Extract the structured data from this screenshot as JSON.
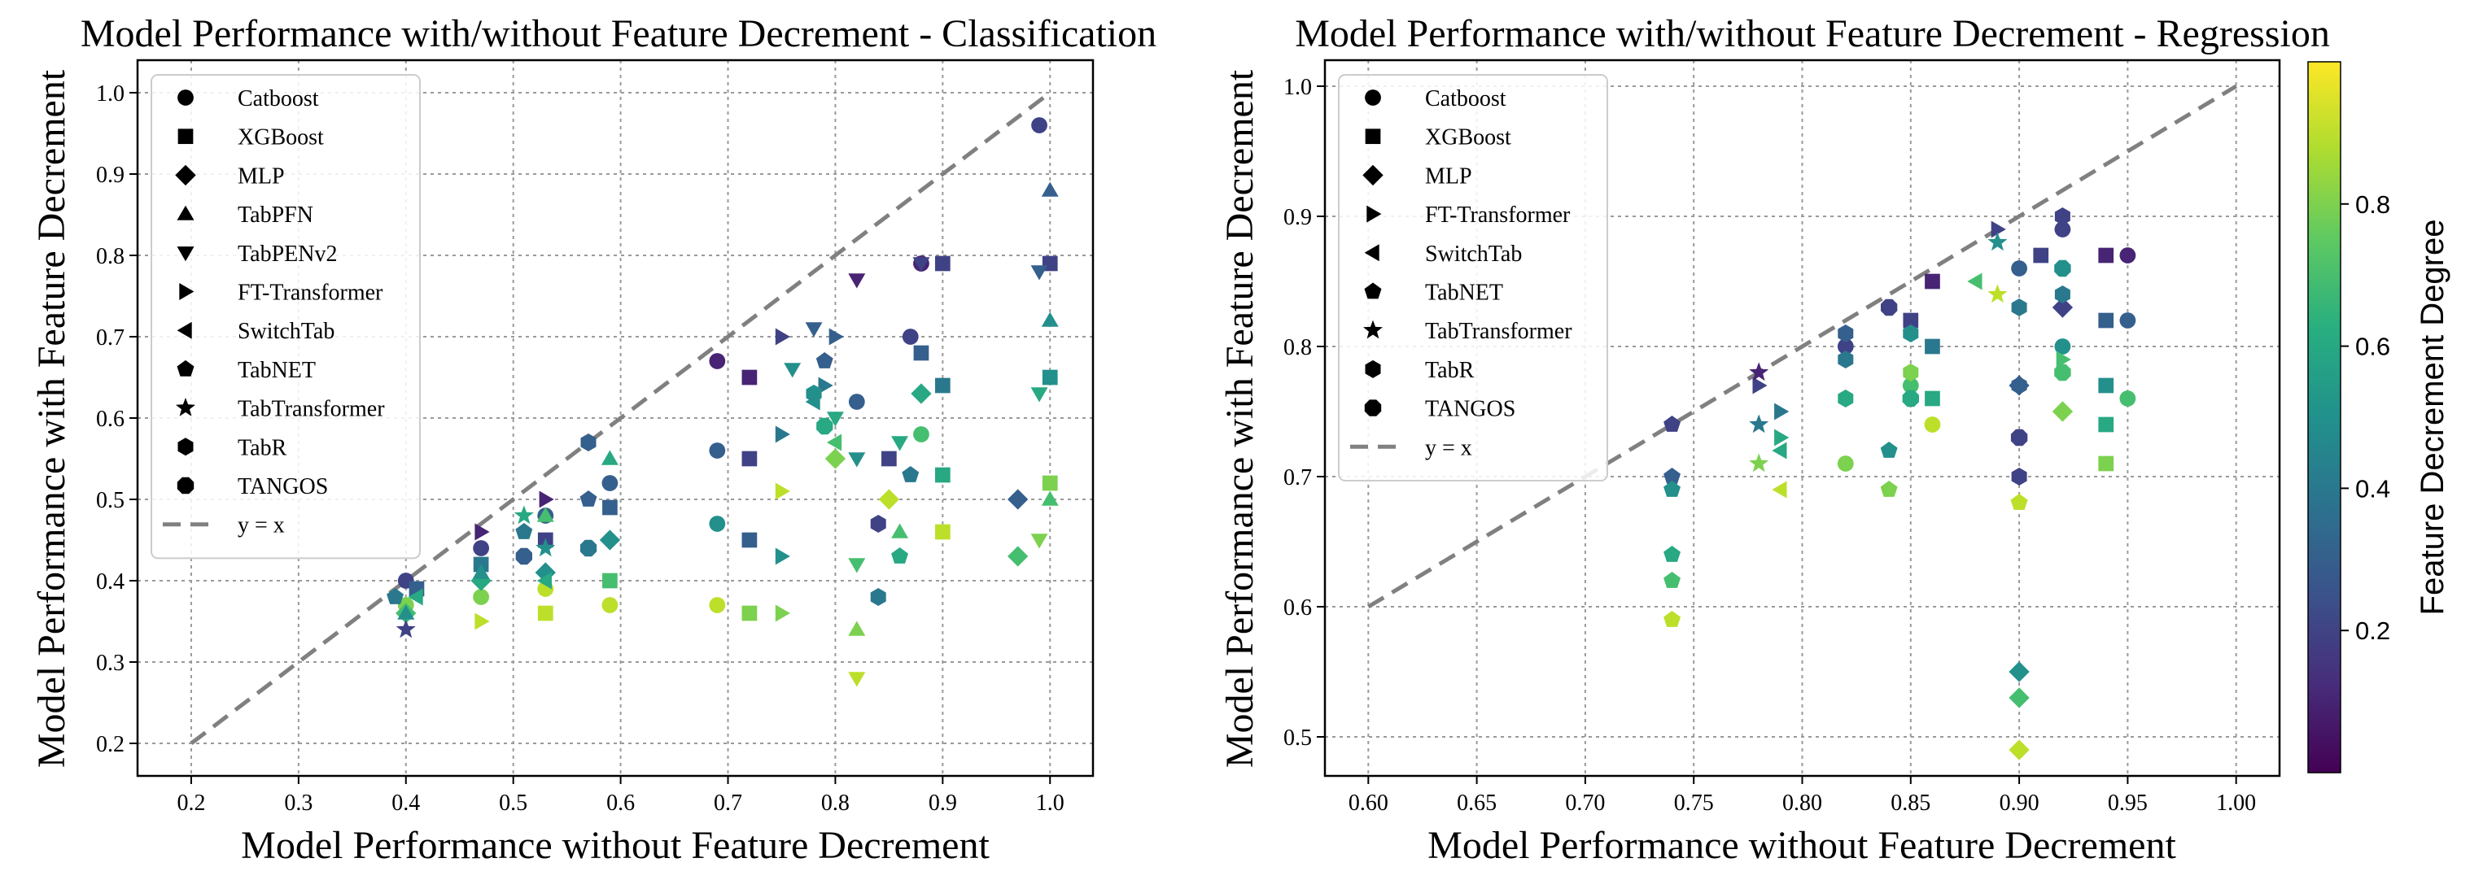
{
  "chart_data": [
    {
      "type": "scatter",
      "title": "Model Performance with/without Feature Decrement - Classification",
      "xlabel": "Model Performance without Feature Decrement",
      "ylabel": "Model Performance with Feature Decrement",
      "xlim": [
        0.15,
        1.04
      ],
      "ylim": [
        0.16,
        1.04
      ],
      "xticks": [
        "0.2",
        "0.3",
        "0.4",
        "0.5",
        "0.6",
        "0.7",
        "0.8",
        "0.9",
        "1.0"
      ],
      "yticks": [
        "0.2",
        "0.3",
        "0.4",
        "0.5",
        "0.6",
        "0.7",
        "0.8",
        "0.9",
        "1.0"
      ],
      "grid": true,
      "legend_position": "upper-left",
      "reference_line": {
        "label": "y = x",
        "from": [
          0.2,
          0.2
        ],
        "to": [
          1.0,
          1.0
        ]
      },
      "series": [
        {
          "name": "Catboost",
          "marker": "circle",
          "points": [
            [
              0.4,
              0.4,
              0.2
            ],
            [
              0.4,
              0.37,
              0.8
            ],
            [
              0.47,
              0.44,
              0.2
            ],
            [
              0.47,
              0.38,
              0.8
            ],
            [
              0.53,
              0.48,
              0.3
            ],
            [
              0.53,
              0.39,
              0.9
            ],
            [
              0.59,
              0.52,
              0.3
            ],
            [
              0.59,
              0.37,
              0.9
            ],
            [
              0.69,
              0.67,
              0.1
            ],
            [
              0.69,
              0.56,
              0.3
            ],
            [
              0.69,
              0.47,
              0.5
            ],
            [
              0.69,
              0.37,
              0.9
            ],
            [
              0.82,
              0.62,
              0.3
            ],
            [
              0.87,
              0.7,
              0.2
            ],
            [
              0.88,
              0.79,
              0.1
            ],
            [
              0.99,
              0.96,
              0.2
            ],
            [
              0.88,
              0.58,
              0.7
            ]
          ]
        },
        {
          "name": "XGBoost",
          "marker": "square",
          "points": [
            [
              0.41,
              0.39,
              0.3
            ],
            [
              0.47,
              0.42,
              0.4
            ],
            [
              0.53,
              0.45,
              0.2
            ],
            [
              0.53,
              0.36,
              0.9
            ],
            [
              0.59,
              0.49,
              0.3
            ],
            [
              0.59,
              0.4,
              0.7
            ],
            [
              0.72,
              0.65,
              0.1
            ],
            [
              0.72,
              0.55,
              0.2
            ],
            [
              0.72,
              0.45,
              0.3
            ],
            [
              0.72,
              0.36,
              0.8
            ],
            [
              0.85,
              0.55,
              0.2
            ],
            [
              0.88,
              0.68,
              0.3
            ],
            [
              0.9,
              0.79,
              0.2
            ],
            [
              0.9,
              0.64,
              0.4
            ],
            [
              0.9,
              0.53,
              0.6
            ],
            [
              0.9,
              0.46,
              0.9
            ],
            [
              1.0,
              0.79,
              0.2
            ],
            [
              1.0,
              0.65,
              0.5
            ],
            [
              1.0,
              0.52,
              0.8
            ]
          ]
        },
        {
          "name": "MLP",
          "marker": "diamond",
          "points": [
            [
              0.4,
              0.36,
              0.7
            ],
            [
              0.47,
              0.4,
              0.6
            ],
            [
              0.53,
              0.41,
              0.5
            ],
            [
              0.59,
              0.45,
              0.5
            ],
            [
              0.8,
              0.55,
              0.8
            ],
            [
              0.85,
              0.5,
              0.9
            ],
            [
              0.88,
              0.63,
              0.6
            ],
            [
              0.97,
              0.43,
              0.7
            ],
            [
              0.97,
              0.5,
              0.3
            ]
          ]
        },
        {
          "name": "TabPFN",
          "marker": "triangle-up",
          "points": [
            [
              0.4,
              0.36,
              0.5
            ],
            [
              0.47,
              0.41,
              0.5
            ],
            [
              0.53,
              0.48,
              0.7
            ],
            [
              0.59,
              0.55,
              0.6
            ],
            [
              0.82,
              0.34,
              0.8
            ],
            [
              0.86,
              0.46,
              0.7
            ],
            [
              1.0,
              0.88,
              0.3
            ],
            [
              1.0,
              0.72,
              0.5
            ],
            [
              1.0,
              0.5,
              0.7
            ]
          ]
        },
        {
          "name": "TabPENv2",
          "marker": "triangle-down",
          "points": [
            [
              0.76,
              0.66,
              0.5
            ],
            [
              0.78,
              0.71,
              0.3
            ],
            [
              0.8,
              0.6,
              0.6
            ],
            [
              0.82,
              0.77,
              0.1
            ],
            [
              0.82,
              0.55,
              0.5
            ],
            [
              0.82,
              0.42,
              0.7
            ],
            [
              0.82,
              0.28,
              0.9
            ],
            [
              0.86,
              0.57,
              0.6
            ],
            [
              0.88,
              0.79,
              0.2
            ],
            [
              0.99,
              0.78,
              0.3
            ],
            [
              0.99,
              0.63,
              0.6
            ],
            [
              0.99,
              0.45,
              0.8
            ]
          ]
        },
        {
          "name": "FT-Transformer",
          "marker": "triangle-right",
          "points": [
            [
              0.47,
              0.46,
              0.1
            ],
            [
              0.47,
              0.35,
              0.9
            ],
            [
              0.53,
              0.5,
              0.1
            ],
            [
              0.75,
              0.7,
              0.2
            ],
            [
              0.75,
              0.58,
              0.4
            ],
            [
              0.75,
              0.51,
              0.9
            ],
            [
              0.75,
              0.43,
              0.5
            ],
            [
              0.75,
              0.36,
              0.8
            ],
            [
              0.79,
              0.64,
              0.4
            ],
            [
              0.8,
              0.7,
              0.3
            ]
          ]
        },
        {
          "name": "SwitchTab",
          "marker": "triangle-left",
          "points": [
            [
              0.41,
              0.38,
              0.6
            ],
            [
              0.53,
              0.4,
              0.6
            ],
            [
              0.78,
              0.62,
              0.5
            ],
            [
              0.8,
              0.57,
              0.7
            ]
          ]
        },
        {
          "name": "TabNET",
          "marker": "pentagon",
          "points": [
            [
              0.39,
              0.38,
              0.4
            ],
            [
              0.51,
              0.46,
              0.4
            ],
            [
              0.57,
              0.5,
              0.3
            ],
            [
              0.79,
              0.67,
              0.3
            ],
            [
              0.86,
              0.43,
              0.6
            ],
            [
              0.87,
              0.53,
              0.4
            ]
          ]
        },
        {
          "name": "TabTransformer",
          "marker": "star",
          "points": [
            [
              0.4,
              0.34,
              0.2
            ],
            [
              0.51,
              0.48,
              0.6
            ],
            [
              0.53,
              0.44,
              0.5
            ]
          ]
        },
        {
          "name": "TabR",
          "marker": "hexagon",
          "points": [
            [
              0.57,
              0.57,
              0.3
            ],
            [
              0.78,
              0.63,
              0.5
            ],
            [
              0.84,
              0.38,
              0.4
            ],
            [
              0.84,
              0.47,
              0.2
            ]
          ]
        },
        {
          "name": "TANGOS",
          "marker": "octagon",
          "points": [
            [
              0.51,
              0.43,
              0.3
            ],
            [
              0.57,
              0.44,
              0.4
            ],
            [
              0.79,
              0.59,
              0.6
            ]
          ]
        }
      ]
    },
    {
      "type": "scatter",
      "title": "Model Performance with/without Feature Decrement - Regression",
      "xlabel": "Model Performance without Feature Decrement",
      "ylabel": "Model Performance with Feature Decrement",
      "xlim": [
        0.58,
        1.02
      ],
      "ylim": [
        0.47,
        1.02
      ],
      "xticks": [
        "0.60",
        "0.65",
        "0.70",
        "0.75",
        "0.80",
        "0.85",
        "0.90",
        "0.95",
        "1.00"
      ],
      "yticks": [
        "0.5",
        "0.6",
        "0.7",
        "0.8",
        "0.9",
        "1.0"
      ],
      "grid": true,
      "legend_position": "upper-left",
      "reference_line": {
        "label": "y = x",
        "from": [
          0.6,
          0.6
        ],
        "to": [
          1.0,
          1.0
        ]
      },
      "colorbar": {
        "label": "Feature Decrement Degree",
        "range": [
          0.0,
          1.0
        ],
        "ticks": [
          "0.2",
          "0.4",
          "0.6",
          "0.8"
        ],
        "colormap": "viridis"
      },
      "series": [
        {
          "name": "Catboost",
          "marker": "circle",
          "points": [
            [
              0.82,
              0.8,
              0.2
            ],
            [
              0.82,
              0.71,
              0.8
            ],
            [
              0.85,
              0.77,
              0.7
            ],
            [
              0.86,
              0.74,
              0.9
            ],
            [
              0.9,
              0.86,
              0.3
            ],
            [
              0.92,
              0.89,
              0.2
            ],
            [
              0.92,
              0.8,
              0.5
            ],
            [
              0.95,
              0.87,
              0.1
            ],
            [
              0.95,
              0.82,
              0.3
            ],
            [
              0.95,
              0.76,
              0.7
            ]
          ]
        },
        {
          "name": "XGBoost",
          "marker": "square",
          "points": [
            [
              0.85,
              0.82,
              0.2
            ],
            [
              0.86,
              0.85,
              0.1
            ],
            [
              0.86,
              0.8,
              0.4
            ],
            [
              0.86,
              0.76,
              0.6
            ],
            [
              0.91,
              0.87,
              0.2
            ],
            [
              0.94,
              0.87,
              0.1
            ],
            [
              0.94,
              0.82,
              0.3
            ],
            [
              0.94,
              0.77,
              0.5
            ],
            [
              0.94,
              0.74,
              0.6
            ],
            [
              0.94,
              0.71,
              0.8
            ]
          ]
        },
        {
          "name": "MLP",
          "marker": "diamond",
          "points": [
            [
              0.9,
              0.55,
              0.5
            ],
            [
              0.9,
              0.53,
              0.7
            ],
            [
              0.9,
              0.49,
              0.9
            ],
            [
              0.9,
              0.77,
              0.3
            ],
            [
              0.92,
              0.75,
              0.8
            ],
            [
              0.92,
              0.83,
              0.2
            ]
          ]
        },
        {
          "name": "FT-Transformer",
          "marker": "triangle-right",
          "points": [
            [
              0.78,
              0.77,
              0.2
            ],
            [
              0.79,
              0.75,
              0.4
            ],
            [
              0.79,
              0.73,
              0.6
            ],
            [
              0.89,
              0.89,
              0.2
            ],
            [
              0.92,
              0.79,
              0.7
            ]
          ]
        },
        {
          "name": "SwitchTab",
          "marker": "triangle-left",
          "points": [
            [
              0.79,
              0.72,
              0.6
            ],
            [
              0.79,
              0.69,
              0.9
            ],
            [
              0.88,
              0.85,
              0.7
            ]
          ]
        },
        {
          "name": "TabNET",
          "marker": "pentagon",
          "points": [
            [
              0.74,
              0.74,
              0.2
            ],
            [
              0.74,
              0.7,
              0.3
            ],
            [
              0.74,
              0.69,
              0.5
            ],
            [
              0.74,
              0.64,
              0.6
            ],
            [
              0.74,
              0.62,
              0.7
            ],
            [
              0.74,
              0.59,
              0.9
            ],
            [
              0.84,
              0.72,
              0.5
            ],
            [
              0.84,
              0.69,
              0.8
            ],
            [
              0.9,
              0.68,
              0.9
            ]
          ]
        },
        {
          "name": "TabTransformer",
          "marker": "star",
          "points": [
            [
              0.78,
              0.78,
              0.1
            ],
            [
              0.78,
              0.74,
              0.4
            ],
            [
              0.78,
              0.71,
              0.8
            ],
            [
              0.89,
              0.84,
              0.9
            ],
            [
              0.89,
              0.88,
              0.5
            ]
          ]
        },
        {
          "name": "TabR",
          "marker": "hexagon",
          "points": [
            [
              0.82,
              0.81,
              0.3
            ],
            [
              0.82,
              0.79,
              0.4
            ],
            [
              0.82,
              0.76,
              0.6
            ],
            [
              0.85,
              0.81,
              0.5
            ],
            [
              0.85,
              0.78,
              0.8
            ],
            [
              0.9,
              0.83,
              0.4
            ],
            [
              0.9,
              0.77,
              0.3
            ],
            [
              0.9,
              0.7,
              0.2
            ],
            [
              0.92,
              0.9,
              0.2
            ],
            [
              0.92,
              0.84,
              0.4
            ]
          ]
        },
        {
          "name": "TANGOS",
          "marker": "octagon",
          "points": [
            [
              0.84,
              0.83,
              0.2
            ],
            [
              0.85,
              0.76,
              0.6
            ],
            [
              0.9,
              0.73,
              0.2
            ],
            [
              0.92,
              0.78,
              0.7
            ],
            [
              0.92,
              0.86,
              0.5
            ]
          ]
        }
      ]
    }
  ]
}
